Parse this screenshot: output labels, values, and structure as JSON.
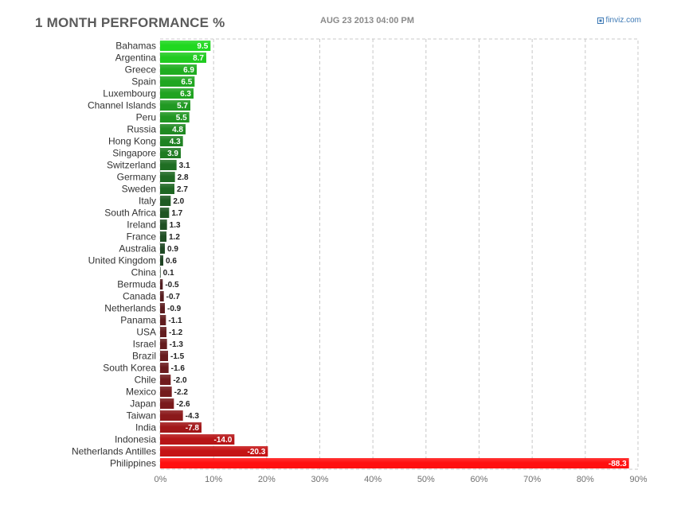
{
  "header": {
    "title": "1 MONTH PERFORMANCE %",
    "timestamp": "AUG 23 2013 04:00 PM",
    "brand": "finviz.com",
    "brand_icon": "finviz-logo-icon"
  },
  "chart_data": {
    "type": "bar",
    "orientation": "horizontal",
    "title": "1 MONTH PERFORMANCE %",
    "xlabel": "",
    "ylabel": "",
    "xlim": [
      0,
      90
    ],
    "grid": true,
    "x_ticks": [
      "0%",
      "10%",
      "20%",
      "30%",
      "40%",
      "50%",
      "60%",
      "70%",
      "80%",
      "90%"
    ],
    "categories": [
      "Bahamas",
      "Argentina",
      "Greece",
      "Spain",
      "Luxembourg",
      "Channel Islands",
      "Peru",
      "Russia",
      "Hong Kong",
      "Singapore",
      "Switzerland",
      "Germany",
      "Sweden",
      "Italy",
      "South Africa",
      "Ireland",
      "France",
      "Australia",
      "United Kingdom",
      "China",
      "Bermuda",
      "Canada",
      "Netherlands",
      "Panama",
      "USA",
      "Israel",
      "Brazil",
      "South Korea",
      "Chile",
      "Mexico",
      "Japan",
      "Taiwan",
      "India",
      "Indonesia",
      "Netherlands Antilles",
      "Philippines"
    ],
    "values": [
      9.5,
      8.7,
      6.9,
      6.5,
      6.3,
      5.7,
      5.5,
      4.8,
      4.3,
      3.9,
      3.1,
      2.8,
      2.7,
      2.0,
      1.7,
      1.3,
      1.2,
      0.9,
      0.6,
      0.1,
      -0.5,
      -0.7,
      -0.9,
      -1.1,
      -1.2,
      -1.3,
      -1.5,
      -1.6,
      -2.0,
      -2.2,
      -2.6,
      -4.3,
      -7.8,
      -14.0,
      -20.3,
      -88.3
    ],
    "value_labels": [
      "9.5",
      "8.7",
      "6.9",
      "6.5",
      "6.3",
      "5.7",
      "5.5",
      "4.8",
      "4.3",
      "3.9",
      "3.1",
      "2.8",
      "2.7",
      "2.0",
      "1.7",
      "1.3",
      "1.2",
      "0.9",
      "0.6",
      "0.1",
      "-0.5",
      "-0.7",
      "-0.9",
      "-1.1",
      "-1.2",
      "-1.3",
      "-1.5",
      "-1.6",
      "-2.0",
      "-2.2",
      "-2.6",
      "-4.3",
      "-7.8",
      "-14.0",
      "-20.3",
      "-88.3"
    ],
    "colors": {
      "positive_max": "#20d820",
      "positive_min": "#1f3a24",
      "negative_min": "#3a1f22",
      "negative_max": "#ff1010",
      "grid": "#c8c8c8",
      "axis_text": "#707070",
      "label_text": "#333333"
    }
  }
}
